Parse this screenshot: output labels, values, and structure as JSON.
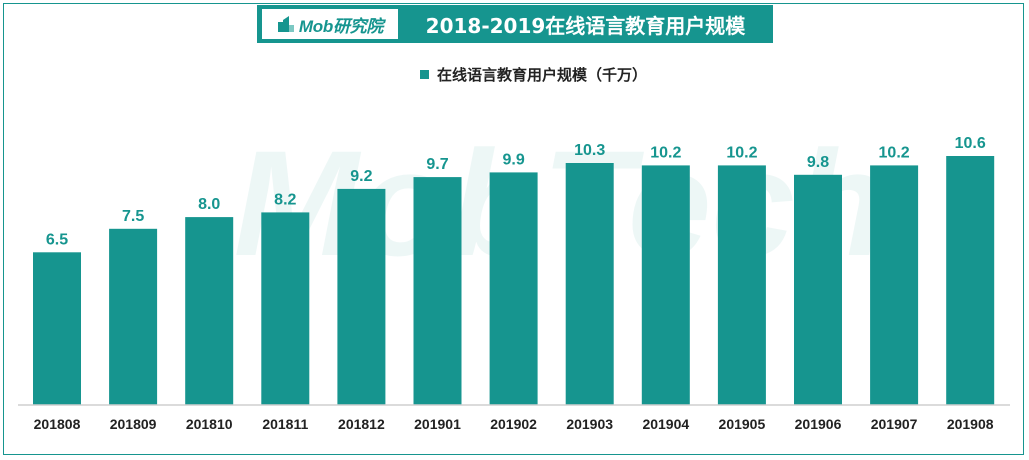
{
  "header": {
    "logo_text": "Mob研究院",
    "title": "2018-2019在线语言教育用户规模"
  },
  "legend": {
    "label": "在线语言教育用户规模（千万）"
  },
  "colors": {
    "accent": "#16958f",
    "axis": "#cfcfcf"
  },
  "watermark": {
    "text": "MobTech"
  },
  "chart_data": {
    "type": "bar",
    "title": "2018-2019在线语言教育用户规模",
    "categories": [
      "201808",
      "201809",
      "201810",
      "201811",
      "201812",
      "201901",
      "201902",
      "201903",
      "201904",
      "201905",
      "201906",
      "201907",
      "201908"
    ],
    "series": [
      {
        "name": "在线语言教育用户规模（千万）",
        "values": [
          6.5,
          7.5,
          8.0,
          8.2,
          9.2,
          9.7,
          9.9,
          10.3,
          10.2,
          10.2,
          9.8,
          10.2,
          10.6
        ],
        "labels": [
          "6.5",
          "7.5",
          "8.0",
          "8.2",
          "9.2",
          "9.7",
          "9.9",
          "10.3",
          "10.2",
          "10.2",
          "9.8",
          "10.2",
          "10.6"
        ]
      }
    ],
    "ylim": [
      0,
      10.6
    ],
    "grid": false,
    "legend_position": "top-center"
  }
}
